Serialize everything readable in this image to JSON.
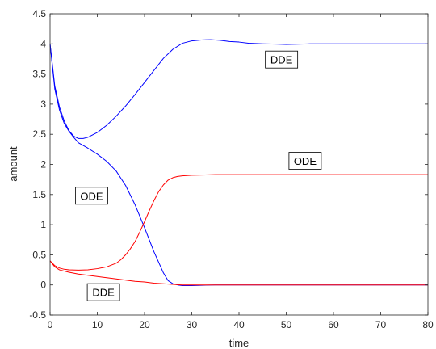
{
  "chart_data": {
    "type": "line",
    "title": "",
    "xlabel": "time",
    "ylabel": "amount",
    "xlim": [
      0,
      80
    ],
    "ylim": [
      -0.5,
      4.5
    ],
    "x_ticks": [
      0,
      10,
      20,
      30,
      40,
      50,
      60,
      70,
      80
    ],
    "y_ticks": [
      -0.5,
      0,
      0.5,
      1,
      1.5,
      2,
      2.5,
      3,
      3.5,
      4,
      4.5
    ],
    "x_tick_labels": [
      "0",
      "10",
      "20",
      "30",
      "40",
      "50",
      "60",
      "70",
      "80"
    ],
    "y_tick_labels": [
      "-0.5",
      "0",
      "0.5",
      "1",
      "1.5",
      "2",
      "2.5",
      "3",
      "3.5",
      "4",
      "4.5"
    ],
    "grid": false,
    "series": [
      {
        "color": "#0000ff",
        "points": [
          [
            0,
            4.0
          ],
          [
            1,
            3.3
          ],
          [
            2,
            2.95
          ],
          [
            3,
            2.72
          ],
          [
            4,
            2.56
          ],
          [
            5,
            2.47
          ],
          [
            6,
            2.43
          ],
          [
            7,
            2.43
          ],
          [
            8,
            2.45
          ],
          [
            10,
            2.53
          ],
          [
            12,
            2.65
          ],
          [
            14,
            2.8
          ],
          [
            16,
            2.97
          ],
          [
            18,
            3.16
          ],
          [
            20,
            3.36
          ],
          [
            22,
            3.56
          ],
          [
            24,
            3.76
          ],
          [
            26,
            3.91
          ],
          [
            28,
            4.01
          ],
          [
            30,
            4.05
          ],
          [
            32,
            4.065
          ],
          [
            34,
            4.07
          ],
          [
            36,
            4.06
          ],
          [
            38,
            4.04
          ],
          [
            40,
            4.03
          ],
          [
            42,
            4.01
          ],
          [
            45,
            4.0
          ],
          [
            48,
            3.995
          ],
          [
            50,
            3.99
          ],
          [
            55,
            4.0
          ],
          [
            60,
            4.0
          ],
          [
            70,
            4.0
          ],
          [
            80,
            4.0
          ]
        ]
      },
      {
        "color": "#0000ff",
        "points": [
          [
            0,
            4.0
          ],
          [
            1,
            3.25
          ],
          [
            2,
            2.9
          ],
          [
            3,
            2.68
          ],
          [
            4,
            2.55
          ],
          [
            5,
            2.45
          ],
          [
            6,
            2.36
          ],
          [
            8,
            2.27
          ],
          [
            10,
            2.17
          ],
          [
            12,
            2.05
          ],
          [
            14,
            1.89
          ],
          [
            16,
            1.65
          ],
          [
            18,
            1.33
          ],
          [
            20,
            0.95
          ],
          [
            22,
            0.55
          ],
          [
            24,
            0.2
          ],
          [
            25,
            0.07
          ],
          [
            26,
            0.02
          ],
          [
            27,
            0.0
          ],
          [
            28,
            -0.01
          ],
          [
            30,
            -0.01
          ],
          [
            35,
            0.0
          ],
          [
            40,
            0.0
          ],
          [
            50,
            0.0
          ],
          [
            60,
            0.0
          ],
          [
            70,
            0.0
          ],
          [
            80,
            0.0
          ]
        ]
      },
      {
        "color": "#ff0000",
        "points": [
          [
            0,
            0.4
          ],
          [
            1,
            0.32
          ],
          [
            2,
            0.28
          ],
          [
            3,
            0.26
          ],
          [
            4,
            0.25
          ],
          [
            6,
            0.245
          ],
          [
            8,
            0.25
          ],
          [
            10,
            0.27
          ],
          [
            12,
            0.3
          ],
          [
            14,
            0.36
          ],
          [
            15,
            0.42
          ],
          [
            16,
            0.5
          ],
          [
            17,
            0.6
          ],
          [
            18,
            0.72
          ],
          [
            19,
            0.88
          ],
          [
            20,
            1.05
          ],
          [
            21,
            1.23
          ],
          [
            22,
            1.4
          ],
          [
            23,
            1.55
          ],
          [
            24,
            1.66
          ],
          [
            25,
            1.74
          ],
          [
            26,
            1.78
          ],
          [
            27,
            1.8
          ],
          [
            28,
            1.81
          ],
          [
            30,
            1.82
          ],
          [
            35,
            1.83
          ],
          [
            40,
            1.83
          ],
          [
            50,
            1.83
          ],
          [
            60,
            1.83
          ],
          [
            70,
            1.83
          ],
          [
            80,
            1.83
          ]
        ]
      },
      {
        "color": "#ff0000",
        "points": [
          [
            0,
            0.4
          ],
          [
            1,
            0.3
          ],
          [
            2,
            0.25
          ],
          [
            4,
            0.21
          ],
          [
            6,
            0.18
          ],
          [
            8,
            0.16
          ],
          [
            10,
            0.14
          ],
          [
            12,
            0.12
          ],
          [
            14,
            0.1
          ],
          [
            16,
            0.08
          ],
          [
            18,
            0.06
          ],
          [
            20,
            0.05
          ],
          [
            22,
            0.03
          ],
          [
            24,
            0.02
          ],
          [
            26,
            0.01
          ],
          [
            28,
            0.0
          ],
          [
            30,
            0.0
          ],
          [
            40,
            0.0
          ],
          [
            50,
            0.0
          ],
          [
            60,
            0.0
          ],
          [
            70,
            0.0
          ],
          [
            80,
            0.0
          ]
        ]
      }
    ],
    "annotations": [
      {
        "text": "DDE",
        "x": 49,
        "y": 3.74
      },
      {
        "text": "ODE",
        "x": 54,
        "y": 2.06
      },
      {
        "text": "ODE",
        "x": 8.8,
        "y": 1.48
      },
      {
        "text": "DDE",
        "x": 11.3,
        "y": -0.12
      }
    ]
  }
}
